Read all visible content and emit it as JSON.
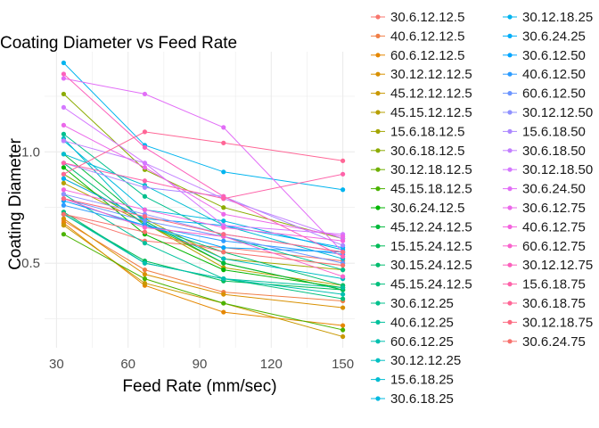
{
  "chart_data": {
    "type": "line",
    "title": "Coating Diameter vs Feed Rate",
    "xlabel": "Feed Rate (mm/sec)",
    "ylabel": "Coating Diameter",
    "x": [
      33,
      67,
      100,
      150
    ],
    "x_ticks": [
      30,
      60,
      90,
      120,
      150
    ],
    "y_ticks": [
      0.5,
      1.0
    ],
    "xlim": [
      25,
      155
    ],
    "ylim": [
      0.12,
      1.45
    ],
    "grid": true,
    "legend_position": "right",
    "series": [
      {
        "name": "30.6.12.12.5",
        "color": "#F8766D",
        "values": [
          0.72,
          0.6,
          0.57,
          0.51
        ]
      },
      {
        "name": "40.6.12.12.5",
        "color": "#F07F47",
        "values": [
          0.69,
          0.47,
          0.37,
          0.33
        ]
      },
      {
        "name": "60.6.12.12.5",
        "color": "#E58700",
        "values": [
          0.68,
          0.4,
          0.28,
          0.22
        ]
      },
      {
        "name": "30.12.12.12.5",
        "color": "#D89000",
        "values": [
          0.7,
          0.45,
          0.36,
          0.3
        ]
      },
      {
        "name": "45.12.12.12.5",
        "color": "#C99800",
        "values": [
          0.67,
          0.41,
          0.32,
          0.17
        ]
      },
      {
        "name": "45.15.12.12.5",
        "color": "#B79F00",
        "values": [
          0.86,
          0.68,
          0.48,
          0.4
        ]
      },
      {
        "name": "15.6.18.12.5",
        "color": "#A3A500",
        "values": [
          0.88,
          0.7,
          0.52,
          0.47
        ]
      },
      {
        "name": "30.6.18.12.5",
        "color": "#8CAB00",
        "values": [
          1.26,
          0.92,
          0.75,
          0.61
        ]
      },
      {
        "name": "30.12.18.12.5",
        "color": "#6FB000",
        "values": [
          0.9,
          0.68,
          0.5,
          0.38
        ]
      },
      {
        "name": "45.15.18.12.5",
        "color": "#4BB300",
        "values": [
          0.63,
          0.43,
          0.32,
          0.2
        ]
      },
      {
        "name": "30.6.24.12.5",
        "color": "#00B600",
        "values": [
          0.93,
          0.63,
          0.47,
          0.39
        ]
      },
      {
        "name": "45.12.24.12.5",
        "color": "#00B93B",
        "values": [
          0.99,
          0.69,
          0.5,
          0.38
        ]
      },
      {
        "name": "15.15.24.12.5",
        "color": "#00BB57",
        "values": [
          0.72,
          0.51,
          0.42,
          0.38
        ]
      },
      {
        "name": "30.15.24.12.5",
        "color": "#00BC6E",
        "values": [
          0.95,
          0.67,
          0.55,
          0.4
        ]
      },
      {
        "name": "45.15.24.12.5",
        "color": "#00BF7D",
        "values": [
          0.73,
          0.5,
          0.43,
          0.34
        ]
      },
      {
        "name": "30.6.12.25",
        "color": "#00C08D",
        "values": [
          1.08,
          0.8,
          0.62,
          0.47
        ]
      },
      {
        "name": "40.6.12.25",
        "color": "#00C19C",
        "values": [
          0.81,
          0.59,
          0.43,
          0.39
        ]
      },
      {
        "name": "60.6.12.25",
        "color": "#00C0AF",
        "values": [
          0.72,
          0.5,
          0.43,
          0.36
        ]
      },
      {
        "name": "30.12.12.25",
        "color": "#00BFC2",
        "values": [
          1.06,
          0.68,
          0.52,
          0.43
        ]
      },
      {
        "name": "15.6.18.25",
        "color": "#00BDD2",
        "values": [
          0.99,
          0.85,
          0.67,
          0.52
        ]
      },
      {
        "name": "30.6.18.25",
        "color": "#00B9E0",
        "values": [
          1.05,
          0.74,
          0.69,
          0.56
        ]
      },
      {
        "name": "30.12.18.25",
        "color": "#00B4EF",
        "values": [
          1.4,
          1.03,
          0.91,
          0.83
        ]
      },
      {
        "name": "30.6.24.25",
        "color": "#00AEF9",
        "values": [
          0.88,
          0.7,
          0.67,
          0.57
        ]
      },
      {
        "name": "30.6.12.50",
        "color": "#00A5FF",
        "values": [
          0.78,
          0.67,
          0.57,
          0.55
        ]
      },
      {
        "name": "40.6.12.50",
        "color": "#2C9CFF",
        "values": [
          0.76,
          0.67,
          0.6,
          0.54
        ]
      },
      {
        "name": "60.6.12.50",
        "color": "#6B95FF",
        "values": [
          0.79,
          0.69,
          0.62,
          0.5
        ]
      },
      {
        "name": "30.12.12.50",
        "color": "#8F91FF",
        "values": [
          0.81,
          0.72,
          0.63,
          0.55
        ]
      },
      {
        "name": "15.6.18.50",
        "color": "#AC88FF",
        "values": [
          0.95,
          0.84,
          0.8,
          0.58
        ]
      },
      {
        "name": "30.6.18.50",
        "color": "#C27FFF",
        "values": [
          1.05,
          0.95,
          0.79,
          0.61
        ]
      },
      {
        "name": "30.12.18.50",
        "color": "#D478FF",
        "values": [
          1.2,
          0.95,
          0.67,
          0.63
        ]
      },
      {
        "name": "30.6.24.50",
        "color": "#E26EF7",
        "values": [
          1.33,
          1.26,
          1.11,
          0.55
        ]
      },
      {
        "name": "30.6.12.75",
        "color": "#EB68EA",
        "values": [
          1.12,
          0.93,
          0.72,
          0.62
        ]
      },
      {
        "name": "40.6.12.75",
        "color": "#F463DE",
        "values": [
          0.83,
          0.74,
          0.66,
          0.6
        ]
      },
      {
        "name": "60.6.12.75",
        "color": "#F963CC",
        "values": [
          0.79,
          0.66,
          0.62,
          0.44
        ]
      },
      {
        "name": "30.12.12.75",
        "color": "#FC61BC",
        "values": [
          1.35,
          1.02,
          0.8,
          0.53
        ]
      },
      {
        "name": "15.6.18.75",
        "color": "#FE63A9",
        "values": [
          0.95,
          0.87,
          0.79,
          0.9
        ]
      },
      {
        "name": "30.6.18.75",
        "color": "#FF6696",
        "values": [
          0.9,
          1.09,
          1.04,
          0.96
        ]
      },
      {
        "name": "30.12.18.75",
        "color": "#FC6B82",
        "values": [
          0.79,
          0.71,
          0.63,
          0.55
        ]
      },
      {
        "name": "30.6.24.75",
        "color": "#F7716D",
        "values": [
          0.72,
          0.64,
          0.55,
          0.49
        ]
      }
    ]
  }
}
